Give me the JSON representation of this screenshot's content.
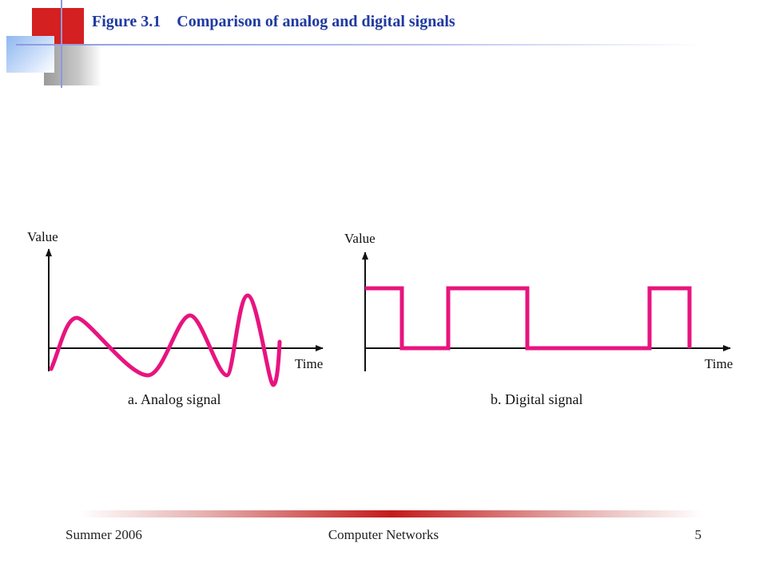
{
  "slide": {
    "title": "Figure 3.1    Comparison of analog and digital signals",
    "accent_color": "#1f3aa0",
    "signal_color": "#e8147f"
  },
  "diagram": {
    "analog": {
      "y_label": "Value",
      "x_label": "Time",
      "caption": "a. Analog signal"
    },
    "digital": {
      "y_label": "Value",
      "x_label": "Time",
      "caption": "b. Digital signal",
      "levels": [
        1,
        0,
        1,
        0,
        1,
        0
      ]
    }
  },
  "footer": {
    "left": "Summer 2006",
    "center": "Computer Networks",
    "right": "5"
  }
}
